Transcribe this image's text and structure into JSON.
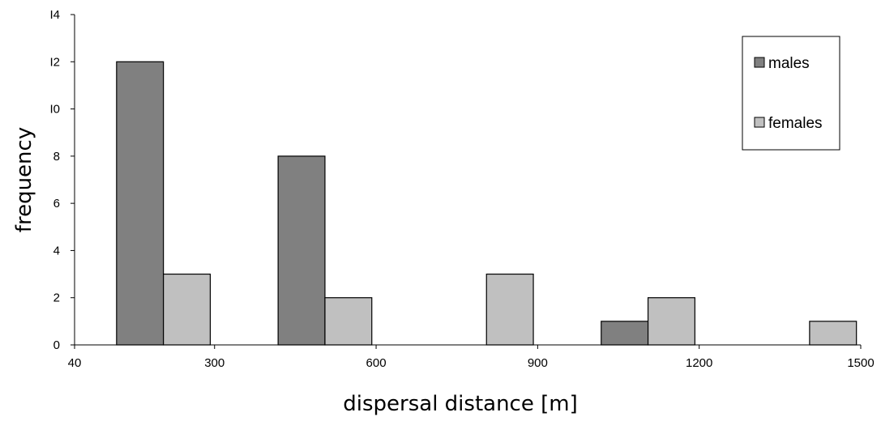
{
  "chart_data": {
    "type": "bar",
    "xlabel": "dispersal distance [m]",
    "ylabel": "frequency",
    "xticks": [
      40,
      300,
      600,
      900,
      1200,
      1500
    ],
    "yticks": [
      0,
      2,
      4,
      6,
      8,
      10,
      12,
      14
    ],
    "ytick_labels": [
      "0",
      "2",
      "4",
      "6",
      "8",
      "I0",
      "I2",
      "I4"
    ],
    "xlim": [
      40,
      1500
    ],
    "ylim": [
      0,
      14
    ],
    "grid": false,
    "legend_position": "top-right",
    "series": [
      {
        "name": "males",
        "color": "#808080",
        "bars": [
          {
            "x0": 118,
            "x1": 205,
            "value": 12
          },
          {
            "x0": 418,
            "x1": 505,
            "value": 8
          },
          {
            "x0": 1018,
            "x1": 1105,
            "value": 1
          }
        ]
      },
      {
        "name": "females",
        "color": "#c0c0c0",
        "bars": [
          {
            "x0": 205,
            "x1": 292,
            "value": 3
          },
          {
            "x0": 505,
            "x1": 592,
            "value": 2
          },
          {
            "x0": 805,
            "x1": 892,
            "value": 3
          },
          {
            "x0": 1105,
            "x1": 1192,
            "value": 2
          },
          {
            "x0": 1405,
            "x1": 1492,
            "value": 1
          }
        ]
      }
    ]
  }
}
